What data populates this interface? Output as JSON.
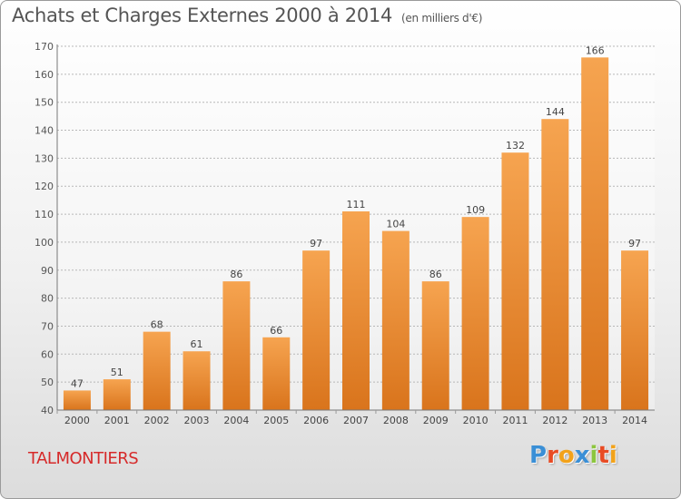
{
  "header": {
    "title": "Achats et Charges Externes 2000 à 2014",
    "subtitle": "(en milliers d'€)"
  },
  "footer": {
    "town": "TALMONTIERS",
    "logo_text": "Proxiti"
  },
  "colors": {
    "bar_top": "#f6a450",
    "bar_bottom": "#d9741c",
    "town": "#d62a2a",
    "logo_letters": [
      "#3a8fd6",
      "#e84b24",
      "#f2a21a",
      "#3a8fd6",
      "#8cc63f",
      "#e84b24",
      "#f2a21a"
    ]
  },
  "chart_data": {
    "type": "bar",
    "title": "Achats et Charges Externes 2000 à 2014",
    "subtitle": "(en milliers d'€)",
    "categories": [
      "2000",
      "2001",
      "2002",
      "2003",
      "2004",
      "2005",
      "2006",
      "2007",
      "2008",
      "2009",
      "2010",
      "2011",
      "2012",
      "2013",
      "2014"
    ],
    "values": [
      47,
      51,
      68,
      61,
      86,
      66,
      97,
      111,
      104,
      86,
      109,
      132,
      144,
      166,
      97
    ],
    "data_labels": [
      "47",
      "51",
      "68",
      "61",
      "86",
      "66",
      "97",
      "111",
      "104",
      "86",
      "109",
      "132",
      "144",
      "166",
      "97"
    ],
    "ylim": [
      40,
      170
    ],
    "yticks": [
      40,
      50,
      60,
      70,
      80,
      90,
      100,
      110,
      120,
      130,
      140,
      150,
      160,
      170
    ],
    "ytick_labels": [
      "40",
      "50",
      "60",
      "70",
      "80",
      "90",
      "100",
      "110",
      "120",
      "130",
      "140",
      "150",
      "160",
      "170"
    ],
    "grid": true,
    "xlabel": "",
    "ylabel": ""
  }
}
